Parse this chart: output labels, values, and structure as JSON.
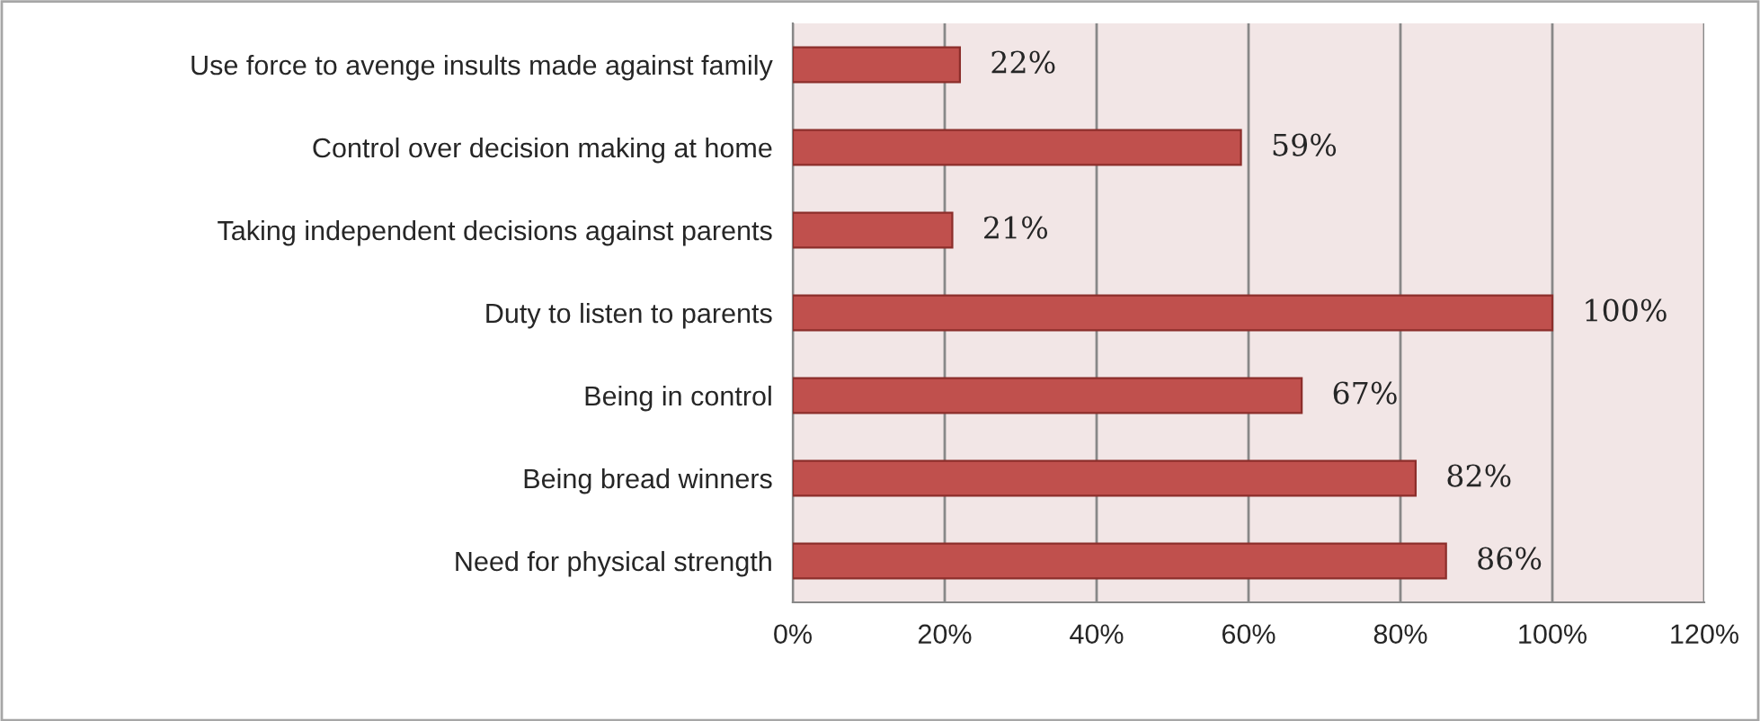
{
  "chart_data": {
    "type": "bar",
    "orientation": "horizontal",
    "categories": [
      "Use force to avenge insults made against family",
      "Control over decision making at home",
      "Taking independent decisions against parents",
      "Duty to listen to parents",
      "Being in control",
      "Being bread winners",
      "Need for physical strength"
    ],
    "values": [
      22,
      59,
      21,
      100,
      67,
      82,
      86
    ],
    "value_labels": [
      "22%",
      "59%",
      "21%",
      "100%",
      "67%",
      "82%",
      "86%"
    ],
    "color": "#c0504d",
    "xlim": [
      0,
      120
    ],
    "xticks": [
      {
        "value": 0,
        "label": "0%"
      },
      {
        "value": 20,
        "label": "20%"
      },
      {
        "value": 40,
        "label": "40%"
      },
      {
        "value": 60,
        "label": "60%"
      },
      {
        "value": 80,
        "label": "80%"
      },
      {
        "value": 100,
        "label": "100%"
      },
      {
        "value": 120,
        "label": "120%"
      }
    ],
    "grid": "x",
    "legend": false
  }
}
